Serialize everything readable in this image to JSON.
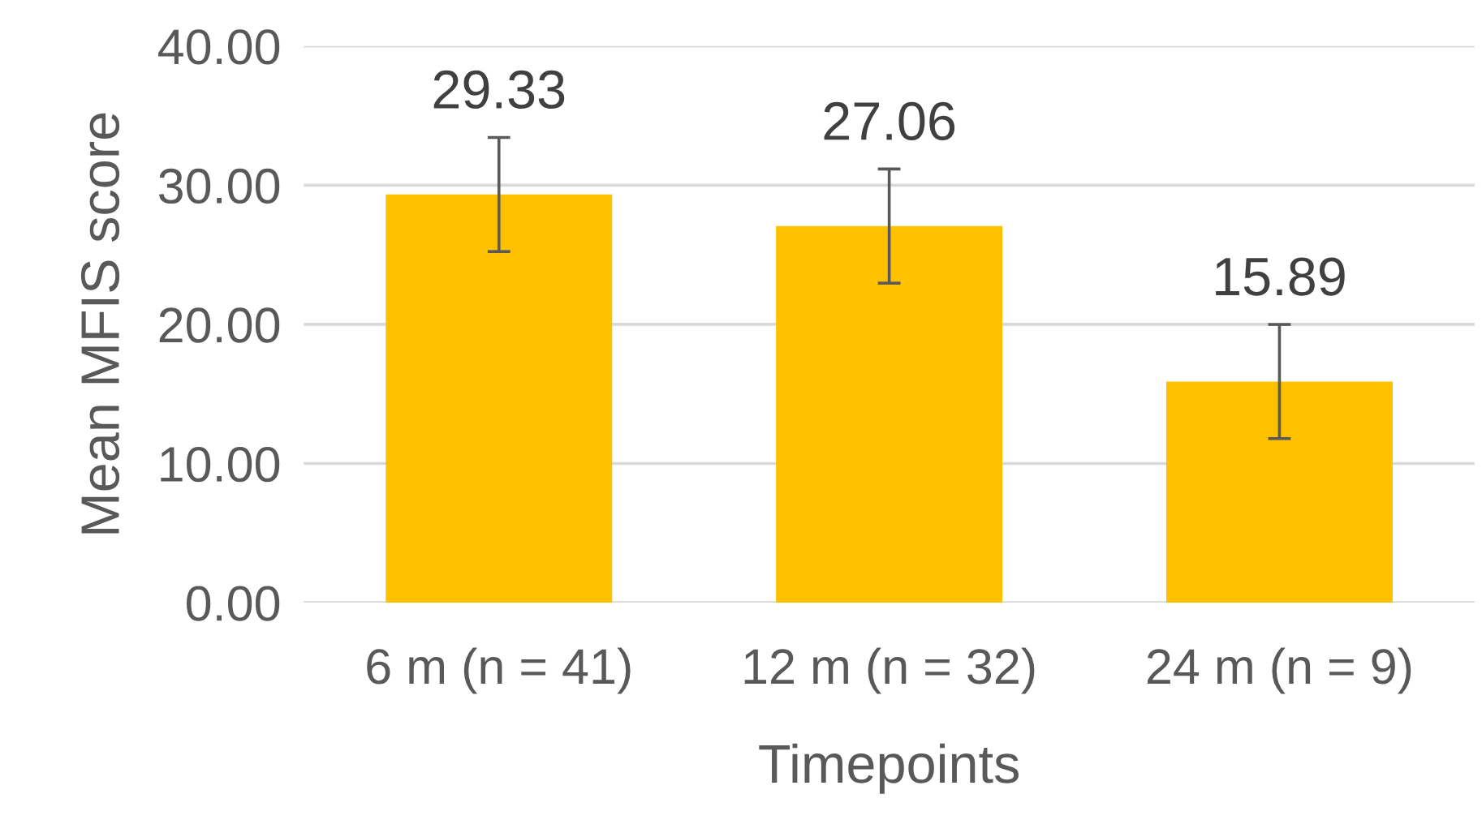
{
  "chart_data": {
    "type": "bar",
    "xlabel": "Timepoints",
    "ylabel": "Mean MFIS score",
    "categories": [
      "6 m (n = 41)",
      "12 m (n = 32)",
      "24 m (n = 9)"
    ],
    "values": [
      29.33,
      27.06,
      15.89
    ],
    "errors": [
      4.1,
      4.1,
      4.1
    ],
    "color": "#ffc000",
    "data_labels": true,
    "ylim": [
      0,
      40
    ],
    "yticks": [
      {
        "value": 0,
        "label": "0.00"
      },
      {
        "value": 10,
        "label": "10.00"
      },
      {
        "value": 20,
        "label": "20.00"
      },
      {
        "value": 30,
        "label": "30.00"
      },
      {
        "value": 40,
        "label": "40.00"
      }
    ],
    "grid": "y"
  }
}
